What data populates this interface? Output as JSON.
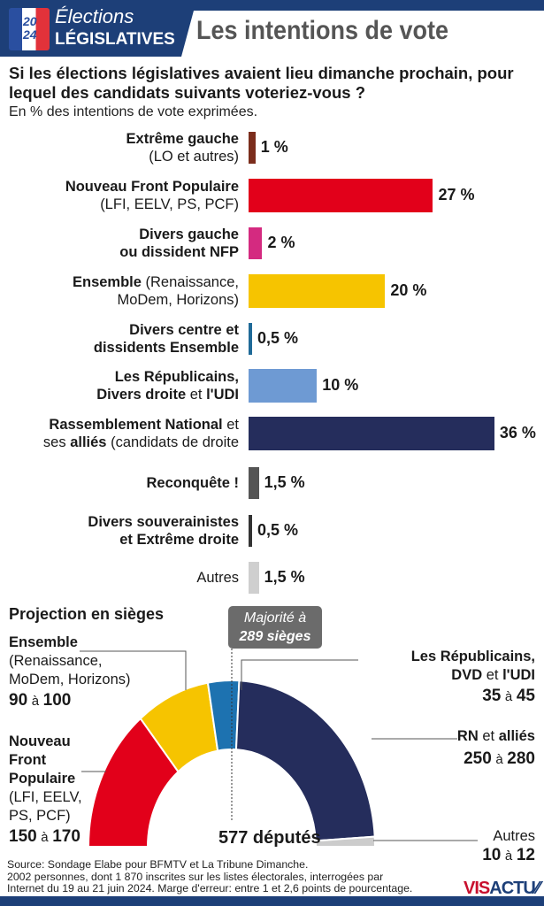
{
  "header": {
    "brand_line1": "Élections",
    "brand_line2": "LÉGISLATIVES",
    "ballot_year": "20\n24",
    "title": "Les intentions de vote"
  },
  "question": "Si les élections législatives avaient lieu dimanche prochain, pour lequel des candidats suivants voteriez-vous ?",
  "subtitle": "En % des intentions de vote exprimées.",
  "chart_data": [
    {
      "type": "bar",
      "orientation": "horizontal",
      "unit": "%",
      "categories": [
        "Extrême gauche (LO et autres)",
        "Nouveau Front Populaire (LFI, EELV, PS, PCF)",
        "Divers gauche ou dissident NFP",
        "Ensemble (Renaissance, MoDem, Horizons)",
        "Divers centre et dissidents Ensemble",
        "Les Républicains, Divers droite et l'UDI",
        "Rassemblement National et ses alliés (candidats de droite",
        "Reconquête !",
        "Divers souverainistes et Extrême droite",
        "Autres"
      ],
      "values": [
        1,
        27,
        2,
        20,
        0.5,
        10,
        36,
        1.5,
        0.5,
        1.5
      ],
      "value_labels": [
        "1 %",
        "27 %",
        "2 %",
        "20 %",
        "0,5 %",
        "10 %",
        "36 %",
        "1,5 %",
        "0,5 %",
        "1,5 %"
      ],
      "colors": [
        "#7b2d1c",
        "#e2001a",
        "#d42a80",
        "#f6c400",
        "#1f6a98",
        "#6e9ad3",
        "#252d5c",
        "#555555",
        "#333333",
        "#cfcfcf"
      ],
      "labels": [
        [
          [
            {
              "t": "Extrême gauche",
              "b": true
            }
          ],
          [
            {
              "t": "(LO et autres)",
              "b": false
            }
          ]
        ],
        [
          [
            {
              "t": "Nouveau Front Populaire",
              "b": true
            }
          ],
          [
            {
              "t": "(LFI, EELV, PS, PCF)",
              "b": false
            }
          ]
        ],
        [
          [
            {
              "t": "Divers gauche",
              "b": true
            }
          ],
          [
            {
              "t": "ou dissident NFP",
              "b": true
            }
          ]
        ],
        [
          [
            {
              "t": "Ensemble",
              "b": true
            },
            {
              "t": " (Renaissance,",
              "b": false
            }
          ],
          [
            {
              "t": "MoDem, Horizons)",
              "b": false
            }
          ]
        ],
        [
          [
            {
              "t": "Divers centre et",
              "b": true
            }
          ],
          [
            {
              "t": "dissidents Ensemble",
              "b": true
            }
          ]
        ],
        [
          [
            {
              "t": "Les Républicains,",
              "b": true
            }
          ],
          [
            {
              "t": "Divers droite",
              "b": true
            },
            {
              "t": " et ",
              "b": false
            },
            {
              "t": "l'UDI",
              "b": true
            }
          ]
        ],
        [
          [
            {
              "t": "Rassemblement National",
              "b": true
            },
            {
              "t": " et",
              "b": false
            }
          ],
          [
            {
              "t": "ses ",
              "b": false
            },
            {
              "t": "alliés",
              "b": true
            },
            {
              "t": " (candidats de droite",
              "b": false
            }
          ]
        ],
        [
          [
            {
              "t": "Reconquête !",
              "b": true
            }
          ]
        ],
        [
          [
            {
              "t": "Divers souverainistes",
              "b": true
            }
          ],
          [
            {
              "t": "et Extrême droite",
              "b": true
            }
          ]
        ],
        [
          [
            {
              "t": "Autres",
              "b": false
            }
          ]
        ]
      ]
    },
    {
      "type": "pie",
      "variant": "hemicycle",
      "title": "Projection en sièges",
      "total_label": "577 députés",
      "categories": [
        "Nouveau Front Populaire (LFI, EELV, PS, PCF)",
        "Ensemble (Renaissance, MoDem, Horizons)",
        "Les Républicains, DVD et l'UDI",
        "RN et alliés",
        "Autres"
      ],
      "ranges": [
        [
          150,
          170
        ],
        [
          90,
          100
        ],
        [
          35,
          45
        ],
        [
          250,
          280
        ],
        [
          10,
          12
        ]
      ],
      "colors": [
        "#e2001a",
        "#f6c400",
        "#1d72b0",
        "#252d5c",
        "#cccccc"
      ],
      "majority": {
        "line1": "Majorité à",
        "line2": "289 sièges",
        "value": 289
      }
    }
  ],
  "seats": {
    "ensemble": {
      "l1": "Ensemble",
      "l2": "(Renaissance,",
      "l3": "MoDem, Horizons)",
      "min": "90",
      "a": "à",
      "max": "100"
    },
    "nfp": {
      "l1": "Nouveau",
      "l2": "Front",
      "l3": "Populaire",
      "l4": "(LFI, EELV,",
      "l5": "PS, PCF)",
      "min": "150",
      "a": "à",
      "max": "170"
    },
    "lr": {
      "l1": "Les Républicains,",
      "l2a": "DVD",
      "l2b": " et ",
      "l2c": "l'UDI",
      "min": "35",
      "a": "à",
      "max": "45"
    },
    "rn": {
      "l1a": "RN",
      "l1b": " et ",
      "l1c": "alliés",
      "min": "250",
      "a": "à",
      "max": "280"
    },
    "autres": {
      "l1": "Autres",
      "min": "10",
      "a": "à",
      "max": "12"
    }
  },
  "source": [
    "Source: Sondage Elabe pour BFMTV et La Tribune Dimanche.",
    "2002 personnes, dont 1 870 inscrites sur les listes électorales, interrogées par",
    "Internet du 19 au 21 juin 2024. Marge d'erreur: entre 1 et 2,6 points de pourcentage."
  ],
  "logo": {
    "a": "VIS",
    "b": "ACTU",
    "c": "⁄⁄"
  }
}
